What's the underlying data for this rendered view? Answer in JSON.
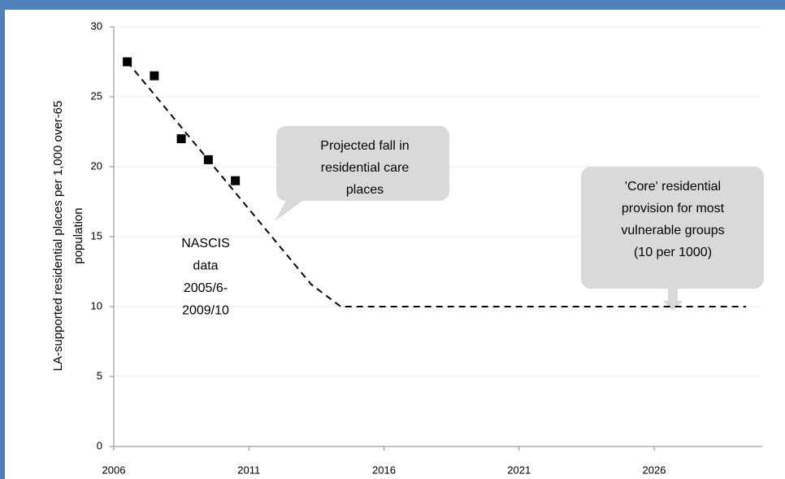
{
  "chart_data": {
    "type": "line",
    "y_label": [
      "LA-supported residential places per 1,000 over-65",
      "population"
    ],
    "xlim": [
      2006,
      2030
    ],
    "xticks": [
      2006,
      2011,
      2016,
      2021,
      2026
    ],
    "ylim": [
      0,
      30
    ],
    "yticks": [
      0,
      5,
      10,
      15,
      20,
      25,
      30
    ],
    "grid": true,
    "series": [
      {
        "mode": "markers",
        "color": "#000000",
        "x": [
          2006.5,
          2007.5,
          2008.5,
          2009.5,
          2010.5
        ],
        "values": [
          27.5,
          26.5,
          22,
          20.5,
          19
        ]
      },
      {
        "mode": "dashed",
        "color": "#000000",
        "x": [
          2006.5,
          2013.3,
          2014.4,
          2029.4
        ],
        "values": [
          27.5,
          11.6,
          10,
          10
        ]
      }
    ],
    "annotations": [
      {
        "lines": [
          "NASCIS",
          "data",
          "2005/6-",
          "2009/10"
        ]
      },
      {
        "lines": [
          "Projected fall in",
          "residential care",
          "places"
        ]
      },
      {
        "lines": [
          "'Core' residential",
          "provision for most",
          "vulnerable groups",
          "(10 per 1000)"
        ]
      }
    ]
  }
}
